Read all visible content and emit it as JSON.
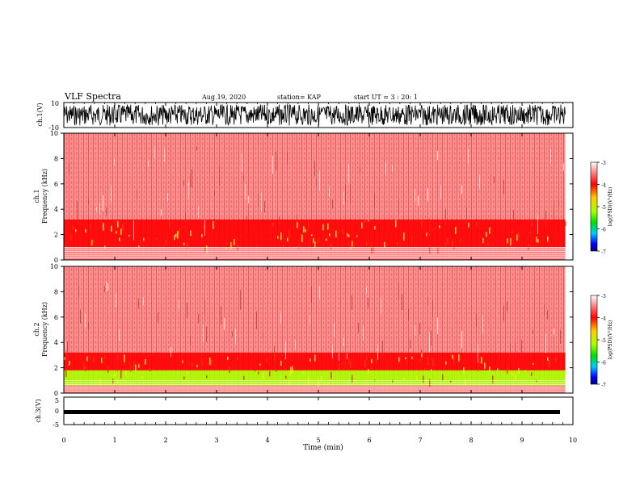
{
  "header": {
    "title": "VLF Spectra",
    "date": "Aug.19, 2020",
    "station": "station= KAP",
    "start": "start  UT  =   3  : 20: 1"
  },
  "colorbar": {
    "label": "log(PSD)(V²/Hz)",
    "ticks": [
      "-3",
      "-4",
      "-5",
      "-6",
      "-7"
    ],
    "colors": [
      "#ffffff",
      "#ff8080",
      "#ff0000",
      "#ffcc00",
      "#aaff00",
      "#00dd00",
      "#00ccff",
      "#0000ff",
      "#000080"
    ]
  },
  "chart_data": [
    {
      "type": "line",
      "name": "ch1-waveform",
      "ylabel": "ch.1(V)",
      "ylim": [
        -10,
        10
      ],
      "yticks": [
        "10",
        "-10"
      ],
      "xlim": [
        0,
        10
      ],
      "note_color": "#000000"
    },
    {
      "type": "heatmap",
      "name": "ch1-spectrogram",
      "ylabel_channel": "ch.1",
      "ylabel": "Frequency  (kHz)",
      "ylim": [
        0,
        10
      ],
      "yticks": [
        "0",
        "2",
        "4",
        "6",
        "8",
        "10"
      ],
      "xlim": [
        0,
        10
      ],
      "bands": [
        {
          "from": 0,
          "to": 1.0,
          "level": -3.6
        },
        {
          "from": 1.0,
          "to": 3.2,
          "level": -4.2
        },
        {
          "from": 3.2,
          "to": 10,
          "level": -3.3
        }
      ]
    },
    {
      "type": "heatmap",
      "name": "ch2-spectrogram",
      "ylabel_channel": "ch.2",
      "ylabel": "Frequency  (kHz)",
      "ylim": [
        0,
        10
      ],
      "yticks": [
        "0",
        "2",
        "4",
        "6",
        "8",
        "10"
      ],
      "xlim": [
        0,
        10
      ],
      "bands": [
        {
          "from": 0,
          "to": 0.6,
          "level": -3.6
        },
        {
          "from": 0.6,
          "to": 1.8,
          "level": -4.8
        },
        {
          "from": 1.8,
          "to": 3.2,
          "level": -4.2
        },
        {
          "from": 3.2,
          "to": 10,
          "level": -3.3
        }
      ]
    },
    {
      "type": "line",
      "name": "ch3-waveform",
      "ylabel": "ch.3(V)",
      "ylim": [
        -5,
        5
      ],
      "yticks": [
        "5",
        "0",
        "-5"
      ],
      "xlim": [
        0,
        10
      ],
      "xlabel": "Time  (min)",
      "xticks": [
        "0",
        "1",
        "2",
        "3",
        "4",
        "5",
        "6",
        "7",
        "8",
        "9",
        "10"
      ]
    }
  ]
}
